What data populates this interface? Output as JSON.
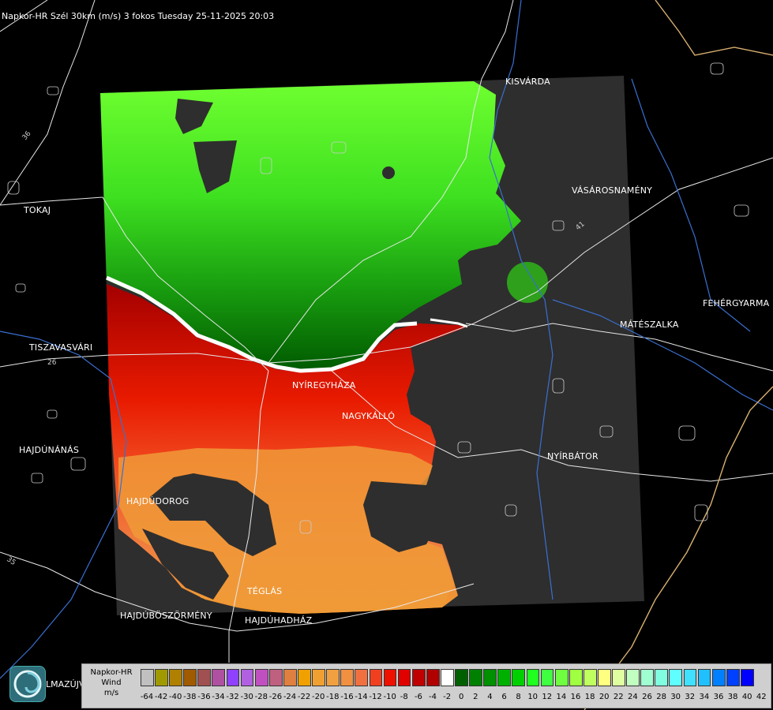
{
  "title": "Napkor-HR Szél 30km (m/s) 3 fokos Tuesday 25-11-2025 20:03",
  "cities": [
    {
      "id": "kisvarda",
      "name": "KISVÁRDA"
    },
    {
      "id": "tokaj",
      "name": "TOKAJ"
    },
    {
      "id": "vasarosnameny",
      "name": "VÁSÁROSNAMÉNY"
    },
    {
      "id": "fehergyarmat",
      "name": "FEHÉRGYARMA"
    },
    {
      "id": "mateszalka",
      "name": "MÁTÉSZALKA"
    },
    {
      "id": "tiszavasvari",
      "name": "TISZAVASVÁRI"
    },
    {
      "id": "nyiregyhaza",
      "name": "NYÍREGYHÁZA"
    },
    {
      "id": "nagykallo",
      "name": "NAGYKÁLLÓ"
    },
    {
      "id": "hajdunanas",
      "name": "HAJDÚNÁNÁS"
    },
    {
      "id": "nyirbator",
      "name": "NYÍRBÁTOR"
    },
    {
      "id": "hajdudorog",
      "name": "HAJDÚDOROG"
    },
    {
      "id": "teglas",
      "name": "TÉGLÁS"
    },
    {
      "id": "hajduboszormeny",
      "name": "HAJDÚBÖSZÖRMÉNY"
    },
    {
      "id": "hajduhadhaz",
      "name": "HAJDÚHADHÁZ"
    },
    {
      "id": "hajdusamson",
      "name": "LMAZÚJVÁR"
    }
  ],
  "road_labels": [
    "36",
    "35",
    "41",
    "26"
  ],
  "legend": {
    "line1": "Napkor-HR",
    "line2": "Wind",
    "line3": "m/s",
    "ticks": [
      "-64",
      "-42",
      "-40",
      "-38",
      "-36",
      "-34",
      "-32",
      "-30",
      "-28",
      "-26",
      "-24",
      "-22",
      "-20",
      "-18",
      "-16",
      "-14",
      "-12",
      "-10",
      "-8",
      "-6",
      "-4",
      "-2",
      "0",
      "2",
      "4",
      "6",
      "8",
      "10",
      "12",
      "14",
      "16",
      "18",
      "20",
      "22",
      "24",
      "26",
      "28",
      "30",
      "32",
      "34",
      "36",
      "38",
      "40",
      "42"
    ],
    "colors": [
      "#c0c0c0",
      "#a09a00",
      "#b08000",
      "#a05a00",
      "#a05050",
      "#b050a0",
      "#9040ff",
      "#b060e0",
      "#c050c0",
      "#c06080",
      "#e08040",
      "#f0a000",
      "#f0a030",
      "#f0a040",
      "#f09040",
      "#f07040",
      "#f04020",
      "#f01000",
      "#e00000",
      "#c00000",
      "#b00000",
      "#ffffff",
      "#006000",
      "#008000",
      "#009000",
      "#00b000",
      "#00d000",
      "#20ff20",
      "#40ff40",
      "#70ff40",
      "#a0ff40",
      "#c0ff60",
      "#ffff80",
      "#e0ffa0",
      "#c0ffc0",
      "#a0ffd0",
      "#80ffe0",
      "#60ffff",
      "#40e0ff",
      "#20c0ff",
      "#0080ff",
      "#0040ff",
      "#0000ff"
    ]
  }
}
